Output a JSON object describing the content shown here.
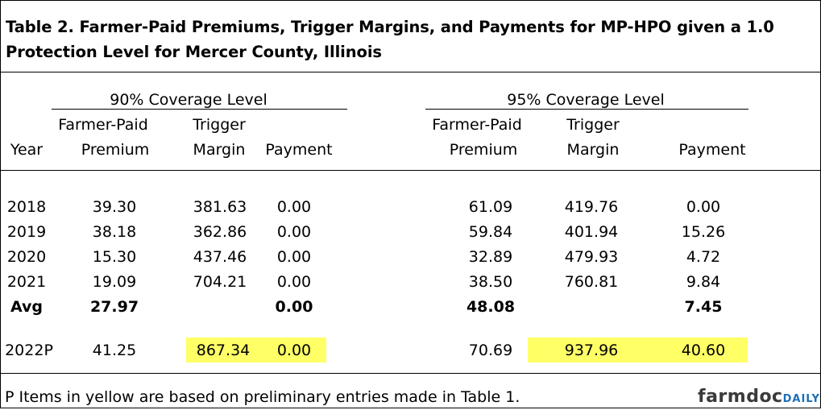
{
  "title": "Table 2.  Farmer-Paid Premiums, Trigger Margins, and Payments for MP-HPO given a 1.0 Protection Level for Mercer County, Illinois",
  "groups": {
    "cov90": "90% Coverage Level",
    "cov95": "95% Coverage Level"
  },
  "headers": {
    "year": "Year",
    "farmer_paid": "Farmer-Paid",
    "premium": "Premium",
    "trigger": "Trigger",
    "margin": "Margin",
    "payment": "Payment"
  },
  "rows": [
    {
      "year": "2018",
      "p90": "39.30",
      "t90": "381.63",
      "pay90": "0.00",
      "p95": "61.09",
      "t95": "419.76",
      "pay95": "0.00"
    },
    {
      "year": "2019",
      "p90": "38.18",
      "t90": "362.86",
      "pay90": "0.00",
      "p95": "59.84",
      "t95": "401.94",
      "pay95": "15.26"
    },
    {
      "year": "2020",
      "p90": "15.30",
      "t90": "437.46",
      "pay90": "0.00",
      "p95": "32.89",
      "t95": "479.93",
      "pay95": "4.72"
    },
    {
      "year": "2021",
      "p90": "19.09",
      "t90": "704.21",
      "pay90": "0.00",
      "p95": "38.50",
      "t95": "760.81",
      "pay95": "9.84"
    }
  ],
  "avg": {
    "label": "Avg",
    "p90": "27.97",
    "pay90": "0.00",
    "p95": "48.08",
    "pay95": "7.45"
  },
  "prelim": {
    "year": "2022P",
    "p90": "41.25",
    "t90": "867.34",
    "pay90": "0.00",
    "p95": "70.69",
    "t95": "937.96",
    "pay95": "40.60"
  },
  "highlight_color": "#ffff66",
  "footnote": "P Items in yellow are based on preliminary entries made in Table 1.",
  "brand": {
    "part1": "farmdoc",
    "part2": "DAILY"
  }
}
